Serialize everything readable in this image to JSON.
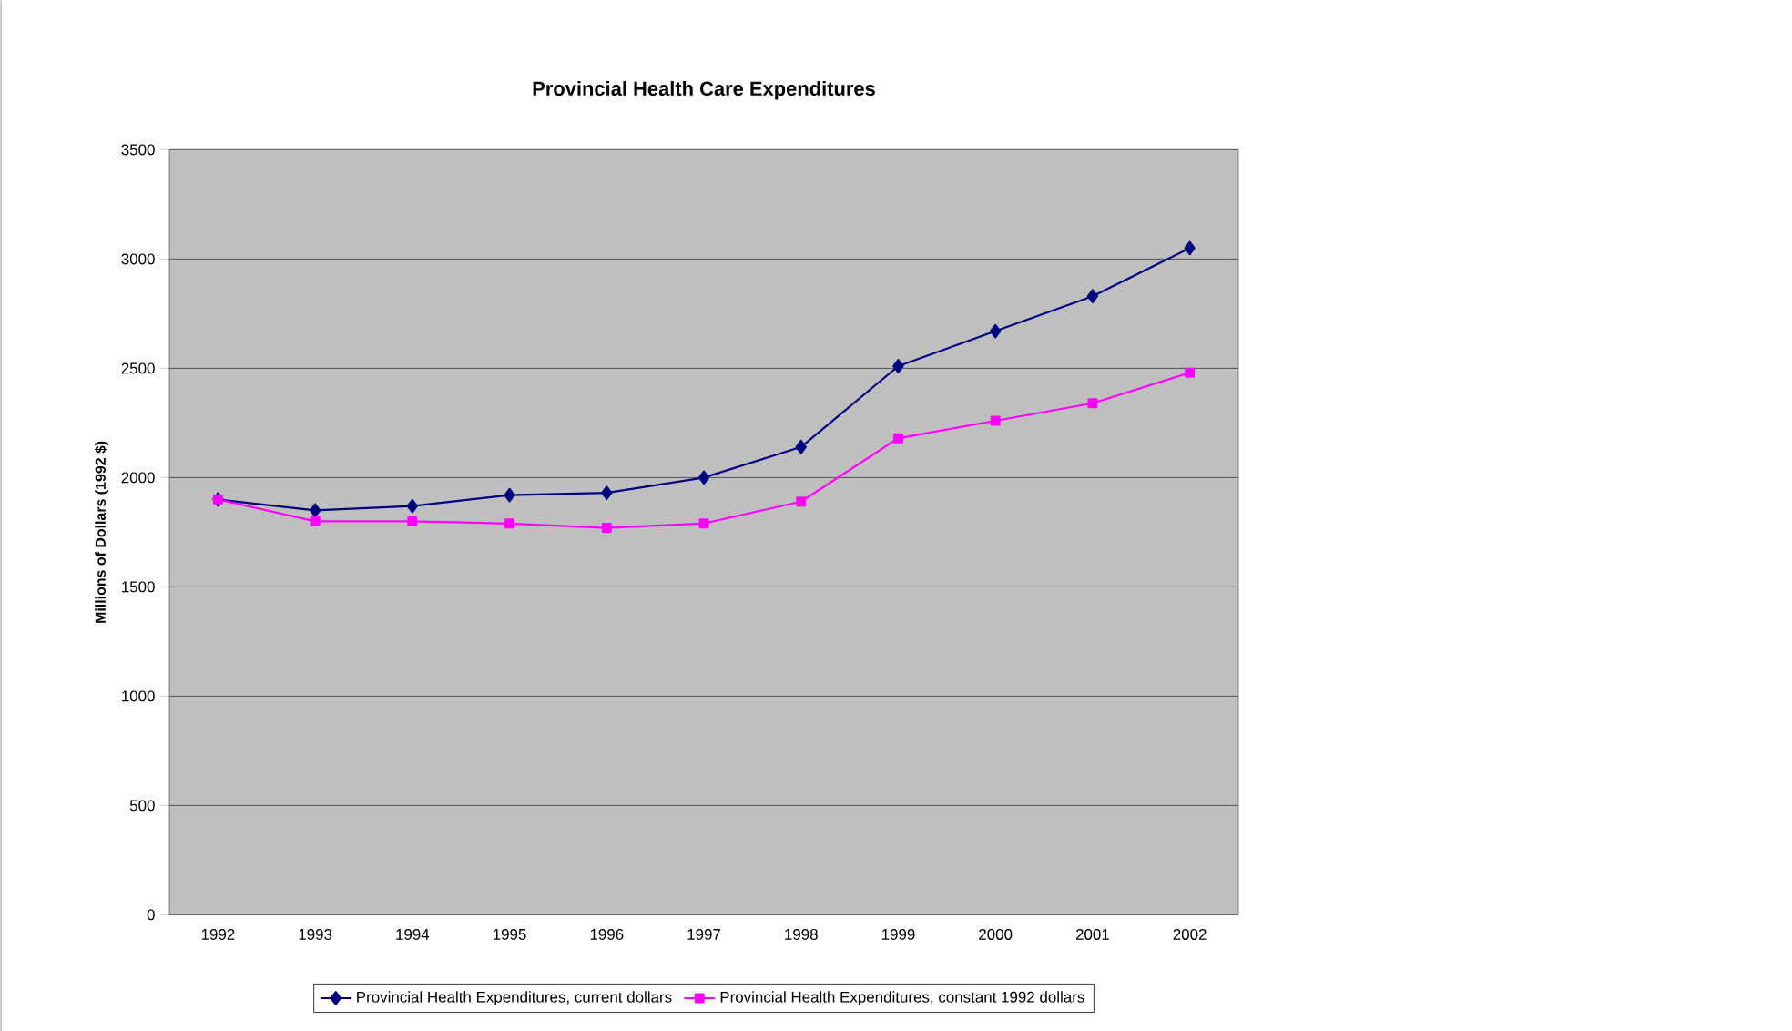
{
  "chart_data": {
    "type": "line",
    "title": "Provincial Health Care Expenditures",
    "ylabel": "Millions of Dollars (1992 $)",
    "categories": [
      "1992",
      "1993",
      "1994",
      "1995",
      "1996",
      "1997",
      "1998",
      "1999",
      "2000",
      "2001",
      "2002"
    ],
    "series": [
      {
        "name": "Provincial Health Expenditures, current dollars",
        "color": "#000080",
        "marker": "diamond",
        "values": [
          1900,
          1850,
          1870,
          1920,
          1930,
          2000,
          2140,
          2510,
          2670,
          2830,
          3050
        ]
      },
      {
        "name": "Provincial Health Expenditures, constant 1992 dollars",
        "color": "#ff00ff",
        "marker": "square",
        "values": [
          1900,
          1800,
          1800,
          1790,
          1770,
          1790,
          1890,
          2180,
          2260,
          2340,
          2480
        ]
      }
    ],
    "ylim": [
      0,
      3500
    ],
    "yticks": [
      0,
      500,
      1000,
      1500,
      2000,
      2500,
      3000,
      3500
    ],
    "grid": "y",
    "legend": "bottom"
  }
}
